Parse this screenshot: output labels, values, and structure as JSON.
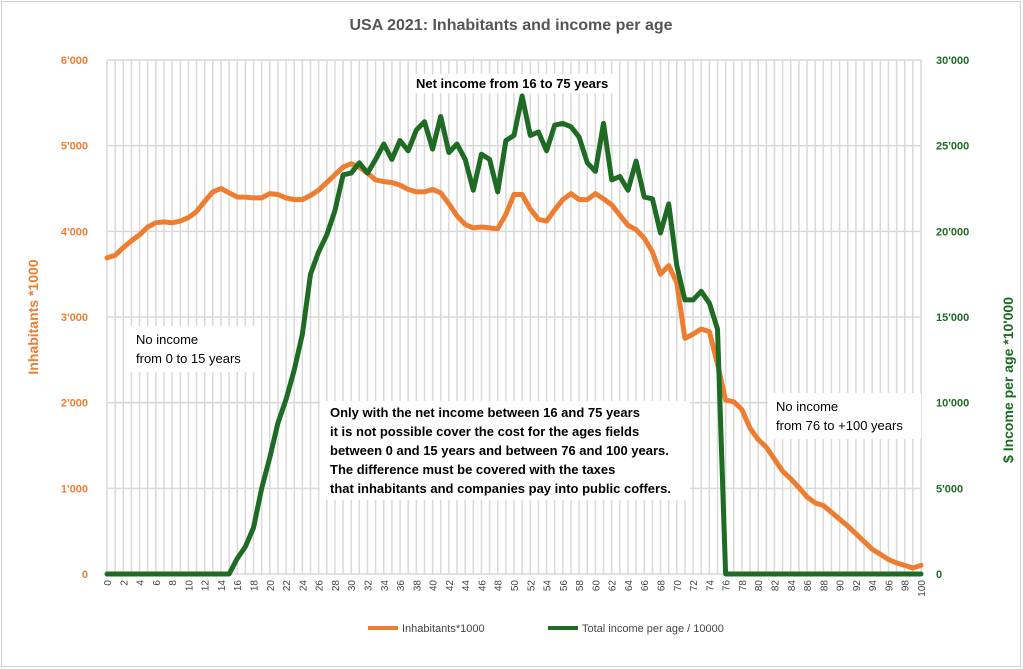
{
  "chart_data": {
    "type": "line",
    "title": "USA 2021: Inhabitants and income per age",
    "xlabel": "",
    "ylabel": "Inhabitants *1000",
    "y2label": "$ Income per age *10'000",
    "xlim": [
      0,
      100
    ],
    "ylim": [
      0,
      6000
    ],
    "y2lim": [
      0,
      30000
    ],
    "yticks": [
      "0",
      "1'000",
      "2'000",
      "3'000",
      "4'000",
      "5'000",
      "6'000"
    ],
    "y2ticks": [
      "0",
      "5'000",
      "10'000",
      "15'000",
      "20'000",
      "25'000",
      "30'000"
    ],
    "grid": true,
    "legend_position": "bottom",
    "series": [
      {
        "name": "Inhabitants*1000",
        "axis": "left",
        "color": "#ED7D31",
        "values": [
          3690,
          3720,
          3810,
          3890,
          3960,
          4050,
          4100,
          4110,
          4100,
          4120,
          4160,
          4230,
          4350,
          4460,
          4500,
          4450,
          4400,
          4400,
          4390,
          4390,
          4440,
          4430,
          4390,
          4370,
          4370,
          4420,
          4480,
          4570,
          4660,
          4750,
          4790,
          4750,
          4680,
          4600,
          4580,
          4570,
          4540,
          4490,
          4460,
          4460,
          4490,
          4450,
          4320,
          4180,
          4080,
          4040,
          4050,
          4040,
          4030,
          4200,
          4430,
          4430,
          4260,
          4140,
          4120,
          4250,
          4370,
          4440,
          4370,
          4370,
          4440,
          4380,
          4310,
          4190,
          4070,
          4020,
          3920,
          3760,
          3500,
          3600,
          3400,
          2750,
          2800,
          2860,
          2830,
          2450,
          2030,
          2010,
          1920,
          1700,
          1570,
          1480,
          1340,
          1200,
          1110,
          1010,
          900,
          830,
          800,
          720,
          640,
          560,
          470,
          380,
          290,
          230,
          170,
          130,
          100,
          70,
          100
        ]
      },
      {
        "name": "Total income per age / 10000",
        "axis": "right",
        "color": "#1E6B24",
        "values": [
          0,
          0,
          0,
          0,
          0,
          0,
          0,
          0,
          0,
          0,
          0,
          0,
          0,
          0,
          0,
          0,
          900,
          1600,
          2700,
          5000,
          6800,
          8800,
          10200,
          11900,
          14000,
          17500,
          18800,
          19800,
          21200,
          23300,
          23400,
          24000,
          23400,
          24200,
          25100,
          24200,
          25300,
          24700,
          25900,
          26400,
          24800,
          26700,
          24600,
          25100,
          24200,
          22400,
          24500,
          24200,
          22300,
          25300,
          25600,
          27900,
          25600,
          25800,
          24700,
          26200,
          26300,
          26100,
          25500,
          24000,
          23500,
          26300,
          23000,
          23200,
          22400,
          24100,
          22000,
          21900,
          19900,
          21600,
          18000,
          16000,
          16000,
          16500,
          15800,
          14300,
          0,
          0,
          0,
          0,
          0,
          0,
          0,
          0,
          0,
          0,
          0,
          0,
          0,
          0,
          0,
          0,
          0,
          0,
          0,
          0,
          0,
          0,
          0,
          0,
          0
        ]
      }
    ],
    "annotations": {
      "top": "Net income from 16 to 75  years",
      "left": [
        "No income",
        "from 0 to 15  years"
      ],
      "right": [
        "No income",
        "from 76 to +100  years"
      ],
      "center": [
        "Only with the net income between 16 and 75 years",
        "it is not possible cover the cost for the ages fields",
        "between 0 and 15 years and between 76 and 100 years.",
        "The difference must be covered with the taxes",
        "that inhabitants and companies pay into public coffers."
      ]
    }
  }
}
